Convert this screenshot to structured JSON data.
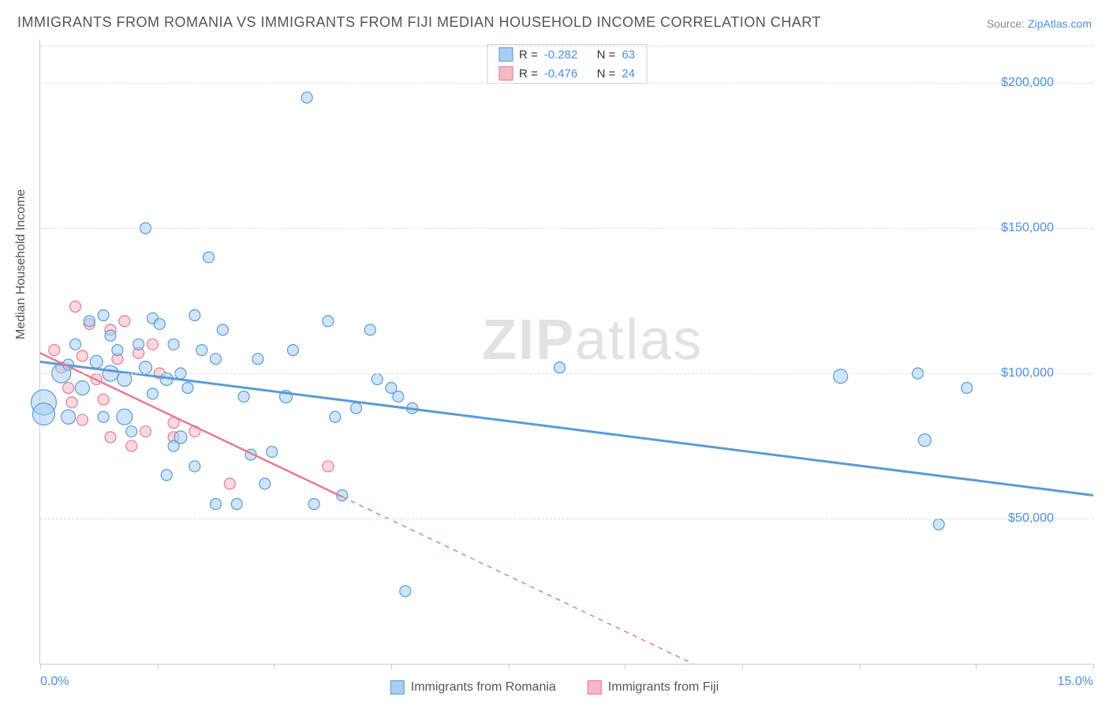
{
  "title": "IMMIGRANTS FROM ROMANIA VS IMMIGRANTS FROM FIJI MEDIAN HOUSEHOLD INCOME CORRELATION CHART",
  "source_prefix": "Source: ",
  "source_link": "ZipAtlas.com",
  "ylabel": "Median Household Income",
  "watermark_bold": "ZIP",
  "watermark_rest": "atlas",
  "chart": {
    "type": "scatter",
    "xlim": [
      0,
      15
    ],
    "ylim": [
      0,
      215000
    ],
    "y_gridlines": [
      50000,
      100000,
      150000,
      200000
    ],
    "y_tick_labels": [
      "$50,000",
      "$100,000",
      "$150,000",
      "$200,000"
    ],
    "x_ticks": [
      0,
      1.67,
      3.33,
      5.0,
      6.67,
      8.33,
      10.0,
      11.67,
      13.33,
      15.0
    ],
    "x_tick_labels": {
      "0": "0.0%",
      "15": "15.0%"
    },
    "background_color": "#ffffff",
    "grid_color": "#dddddd",
    "axis_color": "#cccccc",
    "series": [
      {
        "name": "Immigrants from Romania",
        "color_fill": "#a7cdf0",
        "color_stroke": "#5b9bd5",
        "fill_opacity": 0.55,
        "marker_radius_base": 8,
        "r_value": "-0.282",
        "n_value": "63",
        "trend": {
          "x1": 0,
          "y1": 104000,
          "x2": 15,
          "y2": 58000,
          "dash_from_x": null
        },
        "points": [
          {
            "x": 0.05,
            "y": 90000,
            "r": 16
          },
          {
            "x": 0.05,
            "y": 86000,
            "r": 14
          },
          {
            "x": 0.3,
            "y": 100000,
            "r": 12
          },
          {
            "x": 0.4,
            "y": 103000,
            "r": 7
          },
          {
            "x": 0.4,
            "y": 85000,
            "r": 9
          },
          {
            "x": 0.5,
            "y": 110000,
            "r": 7
          },
          {
            "x": 0.6,
            "y": 95000,
            "r": 9
          },
          {
            "x": 0.7,
            "y": 118000,
            "r": 7
          },
          {
            "x": 0.8,
            "y": 104000,
            "r": 8
          },
          {
            "x": 0.9,
            "y": 120000,
            "r": 7
          },
          {
            "x": 0.9,
            "y": 85000,
            "r": 7
          },
          {
            "x": 1.0,
            "y": 100000,
            "r": 10
          },
          {
            "x": 1.0,
            "y": 113000,
            "r": 7
          },
          {
            "x": 1.1,
            "y": 108000,
            "r": 7
          },
          {
            "x": 1.2,
            "y": 98000,
            "r": 9
          },
          {
            "x": 1.2,
            "y": 85000,
            "r": 10
          },
          {
            "x": 1.3,
            "y": 80000,
            "r": 7
          },
          {
            "x": 1.4,
            "y": 110000,
            "r": 7
          },
          {
            "x": 1.5,
            "y": 102000,
            "r": 8
          },
          {
            "x": 1.5,
            "y": 150000,
            "r": 7
          },
          {
            "x": 1.6,
            "y": 93000,
            "r": 7
          },
          {
            "x": 1.6,
            "y": 119000,
            "r": 7
          },
          {
            "x": 1.7,
            "y": 117000,
            "r": 7
          },
          {
            "x": 1.8,
            "y": 65000,
            "r": 7
          },
          {
            "x": 1.8,
            "y": 98000,
            "r": 8
          },
          {
            "x": 1.9,
            "y": 110000,
            "r": 7
          },
          {
            "x": 1.9,
            "y": 75000,
            "r": 7
          },
          {
            "x": 2.0,
            "y": 78000,
            "r": 8
          },
          {
            "x": 2.0,
            "y": 100000,
            "r": 7
          },
          {
            "x": 2.1,
            "y": 95000,
            "r": 7
          },
          {
            "x": 2.2,
            "y": 120000,
            "r": 7
          },
          {
            "x": 2.2,
            "y": 68000,
            "r": 7
          },
          {
            "x": 2.3,
            "y": 108000,
            "r": 7
          },
          {
            "x": 2.4,
            "y": 140000,
            "r": 7
          },
          {
            "x": 2.5,
            "y": 55000,
            "r": 7
          },
          {
            "x": 2.5,
            "y": 105000,
            "r": 7
          },
          {
            "x": 2.6,
            "y": 115000,
            "r": 7
          },
          {
            "x": 2.8,
            "y": 55000,
            "r": 7
          },
          {
            "x": 2.9,
            "y": 92000,
            "r": 7
          },
          {
            "x": 3.0,
            "y": 72000,
            "r": 7
          },
          {
            "x": 3.1,
            "y": 105000,
            "r": 7
          },
          {
            "x": 3.2,
            "y": 62000,
            "r": 7
          },
          {
            "x": 3.3,
            "y": 73000,
            "r": 7
          },
          {
            "x": 3.5,
            "y": 92000,
            "r": 8
          },
          {
            "x": 3.6,
            "y": 108000,
            "r": 7
          },
          {
            "x": 3.8,
            "y": 195000,
            "r": 7
          },
          {
            "x": 3.9,
            "y": 55000,
            "r": 7
          },
          {
            "x": 4.1,
            "y": 118000,
            "r": 7
          },
          {
            "x": 4.2,
            "y": 85000,
            "r": 7
          },
          {
            "x": 4.3,
            "y": 58000,
            "r": 7
          },
          {
            "x": 4.5,
            "y": 88000,
            "r": 7
          },
          {
            "x": 4.7,
            "y": 115000,
            "r": 7
          },
          {
            "x": 4.8,
            "y": 98000,
            "r": 7
          },
          {
            "x": 5.0,
            "y": 95000,
            "r": 7
          },
          {
            "x": 5.1,
            "y": 92000,
            "r": 7
          },
          {
            "x": 5.2,
            "y": 25000,
            "r": 7
          },
          {
            "x": 5.3,
            "y": 88000,
            "r": 7
          },
          {
            "x": 7.4,
            "y": 102000,
            "r": 7
          },
          {
            "x": 11.4,
            "y": 99000,
            "r": 9
          },
          {
            "x": 12.5,
            "y": 100000,
            "r": 7
          },
          {
            "x": 12.6,
            "y": 77000,
            "r": 8
          },
          {
            "x": 12.8,
            "y": 48000,
            "r": 7
          },
          {
            "x": 13.2,
            "y": 95000,
            "r": 7
          }
        ]
      },
      {
        "name": "Immigrants from Fiji",
        "color_fill": "#f5b8c5",
        "color_stroke": "#e97a94",
        "fill_opacity": 0.55,
        "marker_radius_base": 7,
        "r_value": "-0.476",
        "n_value": "24",
        "trend": {
          "x1": 0,
          "y1": 107000,
          "x2": 9.3,
          "y2": 0,
          "dash_from_x": 4.3
        },
        "points": [
          {
            "x": 0.2,
            "y": 108000,
            "r": 7
          },
          {
            "x": 0.3,
            "y": 102000,
            "r": 7
          },
          {
            "x": 0.4,
            "y": 95000,
            "r": 7
          },
          {
            "x": 0.45,
            "y": 90000,
            "r": 7
          },
          {
            "x": 0.5,
            "y": 123000,
            "r": 7
          },
          {
            "x": 0.6,
            "y": 106000,
            "r": 7
          },
          {
            "x": 0.6,
            "y": 84000,
            "r": 7
          },
          {
            "x": 0.7,
            "y": 117000,
            "r": 7
          },
          {
            "x": 0.8,
            "y": 98000,
            "r": 7
          },
          {
            "x": 0.9,
            "y": 91000,
            "r": 7
          },
          {
            "x": 1.0,
            "y": 115000,
            "r": 7
          },
          {
            "x": 1.0,
            "y": 78000,
            "r": 7
          },
          {
            "x": 1.1,
            "y": 105000,
            "r": 7
          },
          {
            "x": 1.2,
            "y": 118000,
            "r": 7
          },
          {
            "x": 1.3,
            "y": 75000,
            "r": 7
          },
          {
            "x": 1.4,
            "y": 107000,
            "r": 7
          },
          {
            "x": 1.5,
            "y": 80000,
            "r": 7
          },
          {
            "x": 1.6,
            "y": 110000,
            "r": 7
          },
          {
            "x": 1.7,
            "y": 100000,
            "r": 7
          },
          {
            "x": 1.9,
            "y": 83000,
            "r": 7
          },
          {
            "x": 1.9,
            "y": 78000,
            "r": 7
          },
          {
            "x": 2.2,
            "y": 80000,
            "r": 7
          },
          {
            "x": 2.7,
            "y": 62000,
            "r": 7
          },
          {
            "x": 4.1,
            "y": 68000,
            "r": 7
          }
        ]
      }
    ]
  },
  "legend_top_labels": {
    "r": "R =",
    "n": "N ="
  }
}
